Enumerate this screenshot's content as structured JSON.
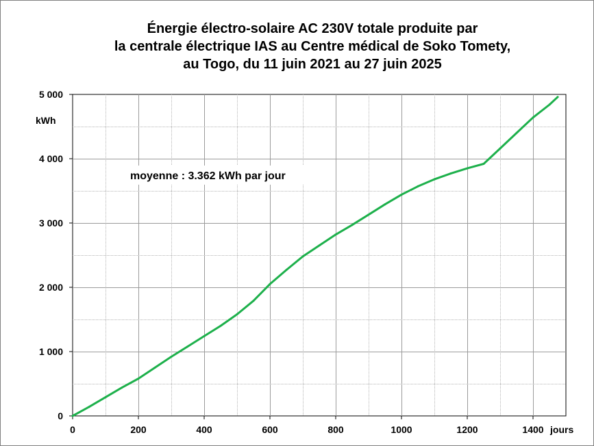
{
  "chart_data": {
    "type": "line",
    "title": [
      "Énergie électro-solaire AC 230V  totale produite par",
      "la centrale électrique IAS  au Centre médical de Soko Tomety,",
      "au Togo, du 11 juin 2021 au 27 juin 2025"
    ],
    "xlabel": "jours",
    "ylabel": "kWh",
    "xlim": [
      0,
      1500
    ],
    "ylim": [
      0,
      5000
    ],
    "x_ticks": [
      0,
      200,
      400,
      600,
      800,
      1000,
      1200,
      1400
    ],
    "x_tick_labels": [
      "0",
      "200",
      "400",
      "600",
      "800",
      "1000",
      "1200",
      "1400"
    ],
    "y_ticks": [
      0,
      1000,
      2000,
      3000,
      4000,
      5000
    ],
    "y_tick_labels": [
      "0",
      "1 000",
      "2 000",
      "3 000",
      "4 000",
      "5 000"
    ],
    "grid": true,
    "annotation": "moyenne : 3.362  kWh par jour",
    "series": [
      {
        "color": "#1db04b",
        "x": [
          0,
          50,
          100,
          150,
          200,
          250,
          300,
          350,
          400,
          450,
          500,
          550,
          600,
          650,
          700,
          750,
          800,
          850,
          900,
          950,
          1000,
          1050,
          1100,
          1150,
          1200,
          1250,
          1300,
          1350,
          1400,
          1450,
          1475
        ],
        "y": [
          0,
          140,
          290,
          440,
          580,
          750,
          920,
          1080,
          1240,
          1400,
          1580,
          1790,
          2050,
          2270,
          2480,
          2650,
          2820,
          2970,
          3130,
          3290,
          3440,
          3570,
          3680,
          3770,
          3850,
          3920,
          4160,
          4400,
          4640,
          4840,
          4960
        ]
      }
    ]
  }
}
